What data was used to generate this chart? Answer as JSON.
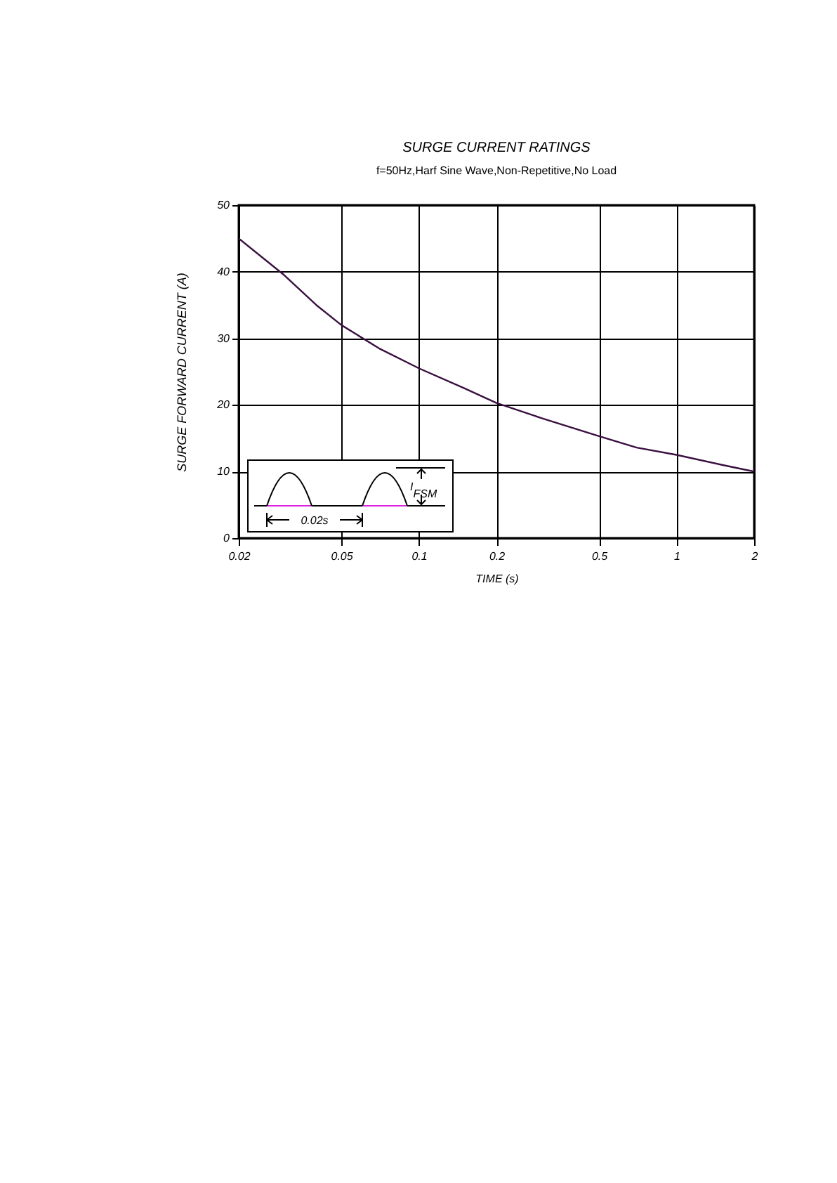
{
  "chart_data": {
    "type": "line",
    "title": "SURGE CURRENT RATINGS",
    "subtitle": "f=50Hz,Harf Sine Wave,Non-Repetitive,No Load",
    "xlabel": "TIME (s)",
    "ylabel": "SURGE FORWARD CURRENT (A)",
    "x": [
      0.02,
      0.03,
      0.04,
      0.05,
      0.07,
      0.1,
      0.15,
      0.2,
      0.3,
      0.5,
      0.7,
      1,
      1.5,
      2
    ],
    "series": [
      {
        "color": "#3a1040",
        "values": [
          45,
          39.5,
          35,
          32,
          28.5,
          25.5,
          22.5,
          20.3,
          18,
          15.3,
          13.6,
          12.5,
          11,
          10
        ]
      }
    ],
    "xlim": [
      0.02,
      2
    ],
    "xticks": [
      0.02,
      0.05,
      0.1,
      0.2,
      0.5,
      1,
      2
    ],
    "ylim": [
      0,
      50
    ],
    "yticks": [
      0,
      10,
      20,
      30,
      40,
      50
    ],
    "log": "x",
    "grid": true,
    "marker": "none",
    "line_style": "solid",
    "annotations": [
      "0.02s",
      "I$_{FSM}$"
    ]
  }
}
